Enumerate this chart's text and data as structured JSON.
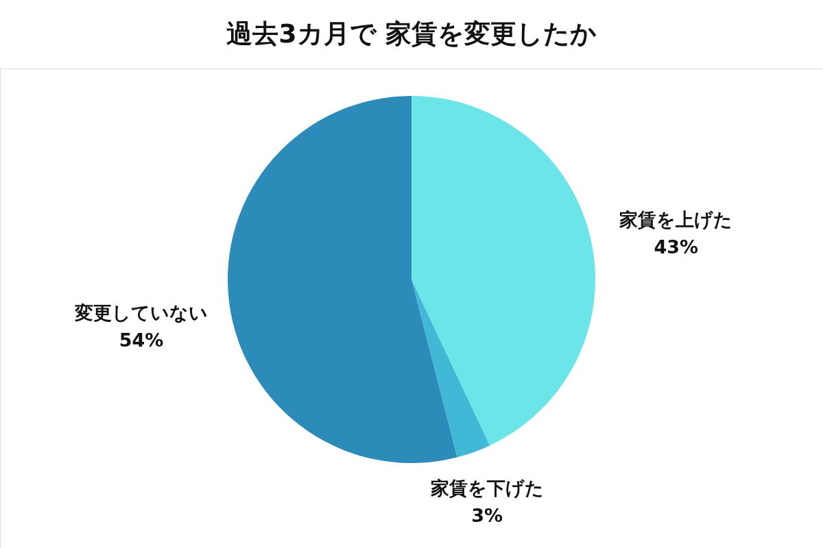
{
  "chart_data": {
    "type": "pie",
    "title": "過去3カ月で 家賃を変更したか",
    "categories": [
      "家賃を上げた",
      "家賃を下げた",
      "変更していない"
    ],
    "values": [
      43,
      3,
      54
    ],
    "value_labels": [
      "43%",
      "3%",
      "54%"
    ],
    "colors": [
      "#6ce5e8",
      "#41b8d5",
      "#2d8bba"
    ],
    "legend": false
  }
}
